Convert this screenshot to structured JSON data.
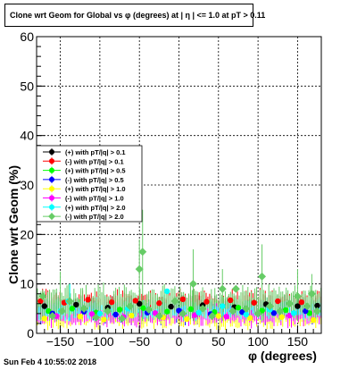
{
  "title": "Clone wrt Geom for Global vs φ (degrees) at | η | <= 1.0 at pT > 0.11",
  "footer": "Sun Feb  4 10:55:02 2018",
  "chart_data": {
    "type": "scatter",
    "title": "Clone wrt Geom for Global vs φ (degrees) at | η | <= 1.0 at pT > 0.11",
    "xlabel": "φ (degrees)",
    "ylabel": "Clone wrt Geom (%)",
    "xlim": [
      -180,
      180
    ],
    "ylim": [
      0,
      60
    ],
    "xticks": [
      -150,
      -100,
      -50,
      0,
      50,
      100,
      150
    ],
    "yticks": [
      0,
      10,
      20,
      30,
      40,
      50,
      60
    ],
    "grid": true,
    "legend_position": "middle-left",
    "series": [
      {
        "name": "(+) with pT/|q| > 0.1",
        "color": "#000000",
        "marker": "circle",
        "x": [
          -170,
          -130,
          -90,
          -50,
          -10,
          30,
          70,
          110,
          150,
          175
        ],
        "y": [
          5.5,
          5.8,
          5.2,
          6.0,
          5.4,
          5.7,
          5.3,
          5.9,
          5.5,
          5.6
        ]
      },
      {
        "name": "(-) with pT/|q| > 0.1",
        "color": "#ff0000",
        "marker": "circle",
        "x": [
          -175,
          -145,
          -115,
          -85,
          -55,
          -25,
          5,
          35,
          65,
          95,
          125,
          155
        ],
        "y": [
          6.5,
          6.2,
          6.8,
          6.3,
          6.6,
          6.1,
          6.9,
          6.4,
          6.7,
          6.2,
          6.5,
          6.3
        ]
      },
      {
        "name": "(+) with pT/|q| > 0.5",
        "color": "#00ff00",
        "marker": "circle",
        "x": [
          -165,
          -135,
          -105,
          -75,
          -45,
          -15,
          15,
          45,
          75,
          105,
          135,
          165
        ],
        "y": [
          4.5,
          5.0,
          4.2,
          4.8,
          5.1,
          4.4,
          4.9,
          4.3,
          5.2,
          4.6,
          4.7,
          4.1
        ]
      },
      {
        "name": "(-) with pT/|q| > 0.5",
        "color": "#0000ff",
        "marker": "circle",
        "x": [
          -160,
          -120,
          -80,
          -40,
          0,
          40,
          80,
          120,
          160
        ],
        "y": [
          4.0,
          4.4,
          3.8,
          4.2,
          4.6,
          3.9,
          4.3,
          4.1,
          4.5
        ]
      },
      {
        "name": "(+) with pT/|q| > 1.0",
        "color": "#ffff00",
        "marker": "circle",
        "x": [
          -170,
          -125,
          -95,
          -60,
          -20,
          10,
          50,
          90,
          130,
          170
        ],
        "y": [
          3.0,
          3.4,
          2.8,
          3.6,
          3.2,
          2.9,
          3.5,
          3.1,
          3.3,
          2.7
        ]
      },
      {
        "name": "(-) with pT/|q| > 1.0",
        "color": "#ff00ff",
        "marker": "circle",
        "x": [
          -155,
          -110,
          -70,
          -30,
          20,
          60,
          100,
          140
        ],
        "y": [
          3.5,
          3.9,
          3.3,
          4.1,
          3.7,
          3.4,
          4.0,
          3.6
        ]
      },
      {
        "name": "(+) with pT/|q| > 2.0",
        "color": "#00ffff",
        "marker": "circle",
        "x": [
          -150,
          -140,
          -100,
          -65,
          -15,
          25,
          55,
          85,
          115,
          145
        ],
        "y": [
          4.5,
          6.5,
          4.0,
          5.0,
          8.5,
          4.2,
          5.5,
          3.8,
          4.8,
          4.1
        ]
      },
      {
        "name": "(-) with pT/|q| > 2.0",
        "color": "#66cc66",
        "marker": "diamond",
        "x": [
          -172,
          -160,
          -148,
          -138,
          -120,
          -105,
          -90,
          -72,
          -62,
          -50,
          -46,
          -38,
          -25,
          -5,
          5,
          18,
          30,
          42,
          55,
          68,
          72,
          85,
          100,
          105,
          115,
          128,
          140,
          150,
          162,
          168,
          175
        ],
        "y": [
          7.5,
          3.5,
          4.5,
          6.5,
          5.0,
          3.2,
          4.5,
          3.0,
          5.5,
          13.0,
          16.5,
          4.8,
          3.5,
          6.5,
          4.0,
          10.0,
          5.0,
          3.5,
          9.0,
          4.5,
          9.0,
          5.0,
          4.0,
          11.5,
          5.5,
          4.5,
          6.0,
          7.5,
          5.5,
          8.0,
          4.5
        ]
      }
    ]
  }
}
